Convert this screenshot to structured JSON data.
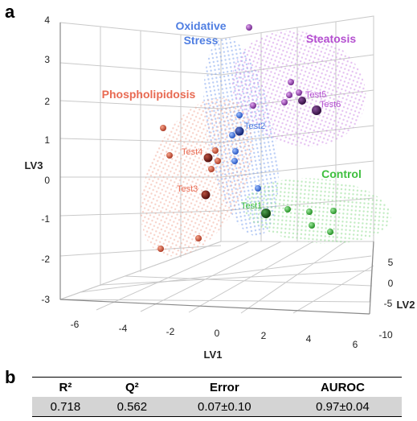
{
  "panel_a_label": "a",
  "panel_b_label": "b",
  "chart_data": {
    "type": "scatter",
    "projection": "3d",
    "title": "",
    "xlabel": "LV1",
    "ylabel": "LV2",
    "zlabel": "LV3",
    "xlim": [
      -6,
      6
    ],
    "ylim": [
      -10,
      5
    ],
    "zlim": [
      -3,
      4
    ],
    "x_ticks": [
      "-6",
      "-4",
      "-2",
      "0",
      "2",
      "4",
      "6"
    ],
    "y_ticks": [
      "-10",
      "-5",
      "0",
      "5"
    ],
    "z_ticks": [
      "-3",
      "-2",
      "-1",
      "0",
      "1",
      "2",
      "3",
      "4"
    ],
    "grid": true,
    "groups": [
      {
        "name": "Oxidative Stress",
        "color": "#4f7ee2"
      },
      {
        "name": "Steatosis",
        "color": "#b44fd0"
      },
      {
        "name": "Phospholipidosis",
        "color": "#e86a52"
      },
      {
        "name": "Control",
        "color": "#3fbf3f"
      }
    ],
    "test_labels": [
      "Test1",
      "Test2",
      "Test3",
      "Test4",
      "Test5",
      "Test6"
    ]
  },
  "table": {
    "headers": [
      "R²",
      "Q²",
      "Error",
      "AUROC"
    ],
    "values": [
      "0.718",
      "0.562",
      "0.07±0.10",
      "0.97±0.04"
    ]
  }
}
